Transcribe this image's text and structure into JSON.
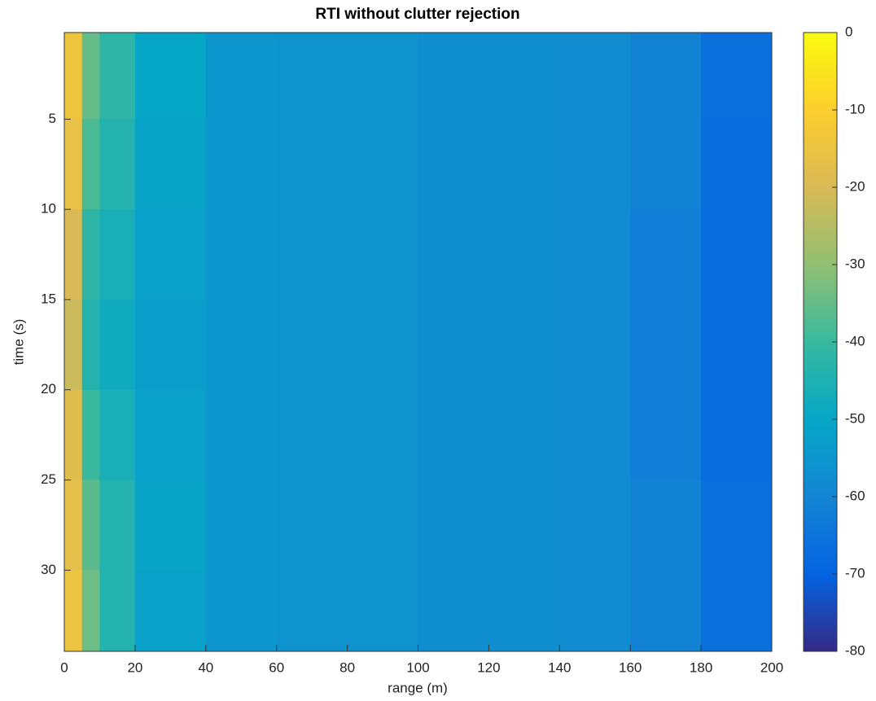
{
  "chart_data": {
    "type": "heatmap",
    "title": "RTI without clutter rejection",
    "x_label": "range (m)",
    "y_label": "time (s)",
    "x_edges": [
      0,
      5,
      10,
      20,
      40,
      60,
      80,
      100,
      120,
      140,
      160,
      180,
      200
    ],
    "y_edges": [
      0.2,
      5,
      10,
      15,
      20,
      25,
      30,
      34.5
    ],
    "z": [
      [
        -14,
        -35,
        -42,
        -50,
        -55,
        -56,
        -56,
        -57,
        -57,
        -58,
        -61,
        -66
      ],
      [
        -16,
        -38,
        -44,
        -51,
        -55,
        -56,
        -56,
        -57,
        -57,
        -58,
        -61,
        -67
      ],
      [
        -20,
        -42,
        -46,
        -52,
        -55,
        -56,
        -56,
        -57,
        -57,
        -58,
        -62,
        -67
      ],
      [
        -22,
        -44,
        -48,
        -53,
        -55,
        -56,
        -56,
        -57,
        -57,
        -58,
        -62,
        -67
      ],
      [
        -18,
        -40,
        -46,
        -52,
        -55,
        -56,
        -56,
        -57,
        -57,
        -58,
        -62,
        -67
      ],
      [
        -17,
        -36,
        -44,
        -51,
        -55,
        -56,
        -56,
        -57,
        -57,
        -58,
        -61,
        -66
      ],
      [
        -15,
        -34,
        -44,
        -52,
        -55,
        -56,
        -56,
        -57,
        -57,
        -58,
        -61,
        -66
      ]
    ],
    "xlim": [
      0,
      200
    ],
    "xticks": [
      0,
      20,
      40,
      60,
      80,
      100,
      120,
      140,
      160,
      180,
      200
    ],
    "ylim": [
      0.2,
      34.5
    ],
    "yticks": [
      5,
      10,
      15,
      20,
      25,
      30
    ],
    "y_reversed": true,
    "clim": [
      -80,
      0
    ],
    "cticks": [
      0,
      -10,
      -20,
      -30,
      -40,
      -50,
      -60,
      -70,
      -80
    ],
    "colormap": [
      "#352a87",
      "#0363e1",
      "#1485d4",
      "#06a7c6",
      "#38b99e",
      "#92bf73",
      "#d9ba56",
      "#fcce2e",
      "#f9fb0e"
    ]
  }
}
